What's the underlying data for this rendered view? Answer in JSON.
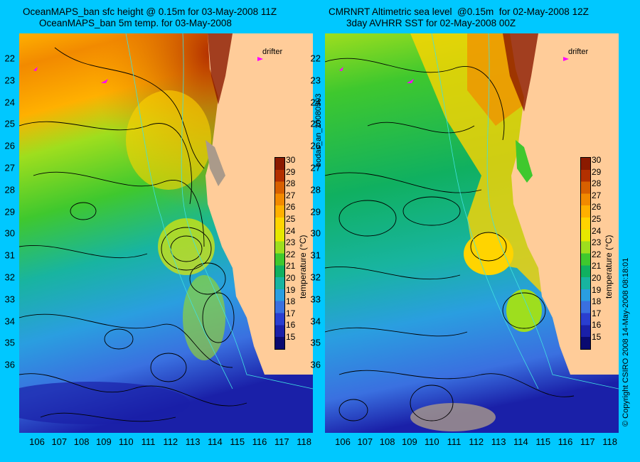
{
  "titles": {
    "left_line1": "OceanMAPS_ban sfc height @ 0.15m for 03-May-2008 11Z",
    "left_line2": "OceanMAPS_ban 5m temp. for 03-May-2008",
    "right_line1": "CMRNRT Altimetric sea level  @0.15m  for 02-May-2008 12Z",
    "right_line2": "3day AVHRR SST for 02-May-2008 00Z"
  },
  "side_text": {
    "run_label": "bodas_an_20080503",
    "copyright": "© Copyright CSIRO 2008   14-May-2008 08:18:01"
  },
  "legend": {
    "drifter_label": "drifter",
    "colorbar_label": "temperature (°C)",
    "ticks": [
      "30",
      "29",
      "28",
      "27",
      "26",
      "25",
      "24",
      "23",
      "22",
      "21",
      "20",
      "19",
      "18",
      "17",
      "16",
      "15"
    ],
    "colors": [
      "#8b1a00",
      "#b33000",
      "#d86000",
      "#f28a00",
      "#ffb000",
      "#ffd400",
      "#e6e800",
      "#9ede1e",
      "#3fc82e",
      "#10b060",
      "#18b4a0",
      "#2a9ee0",
      "#3a70e0",
      "#2a3ed0",
      "#1a20a8",
      "#0a0a70"
    ]
  },
  "axes": {
    "lat_labels": [
      "22",
      "23",
      "24",
      "25",
      "26",
      "27",
      "28",
      "29",
      "30",
      "31",
      "32",
      "33",
      "34",
      "35",
      "36"
    ],
    "lon_labels": [
      "106",
      "107",
      "108",
      "109",
      "110",
      "111",
      "112",
      "113",
      "114",
      "115",
      "116",
      "117",
      "118"
    ]
  },
  "colors": {
    "background": "#00c8ff",
    "land": "#ffcc99",
    "drifter": "#ff00ff",
    "contour": "#000000",
    "bathymetry": "#40e0e0"
  }
}
